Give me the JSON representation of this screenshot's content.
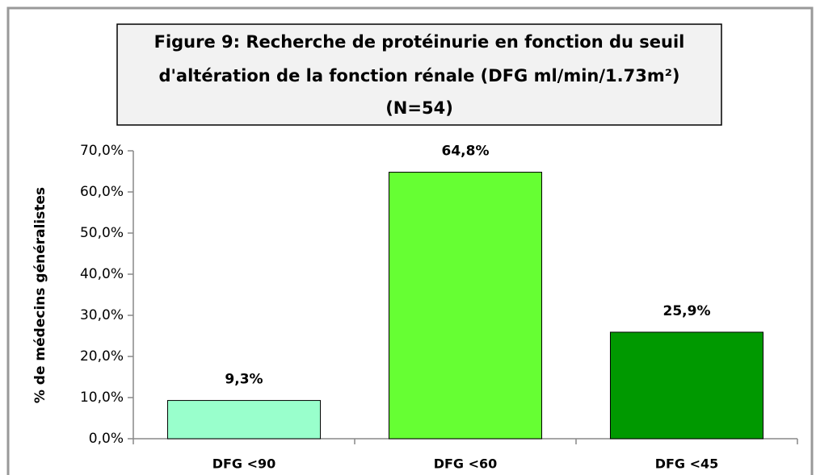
{
  "chart_data": {
    "type": "bar",
    "title": [
      "Figure 9: Recherche de protéinurie en fonction du seuil",
      "d'altération de la fonction rénale (DFG ml/min/1.73m²)",
      "(N=54)"
    ],
    "y_label": "% de médecins généralistes",
    "categories": [
      "DFG <90",
      "DFG <60",
      "DFG <45"
    ],
    "values": [
      9.3,
      64.8,
      25.9
    ],
    "value_labels": [
      "9,3%",
      "64,8%",
      "25,9%"
    ],
    "colors": [
      "#99ffcc",
      "#66ff33",
      "#009900"
    ],
    "ylim": [
      0,
      70
    ],
    "yticks": [
      {
        "value": 0,
        "label": "0,0%"
      },
      {
        "value": 10,
        "label": "10,0%"
      },
      {
        "value": 20,
        "label": "20,0%"
      },
      {
        "value": 30,
        "label": "30,0%"
      },
      {
        "value": 40,
        "label": "40,0%"
      },
      {
        "value": 50,
        "label": "50,0%"
      },
      {
        "value": 60,
        "label": "60,0%"
      },
      {
        "value": 70,
        "label": "70,0%"
      }
    ],
    "grid": false
  }
}
